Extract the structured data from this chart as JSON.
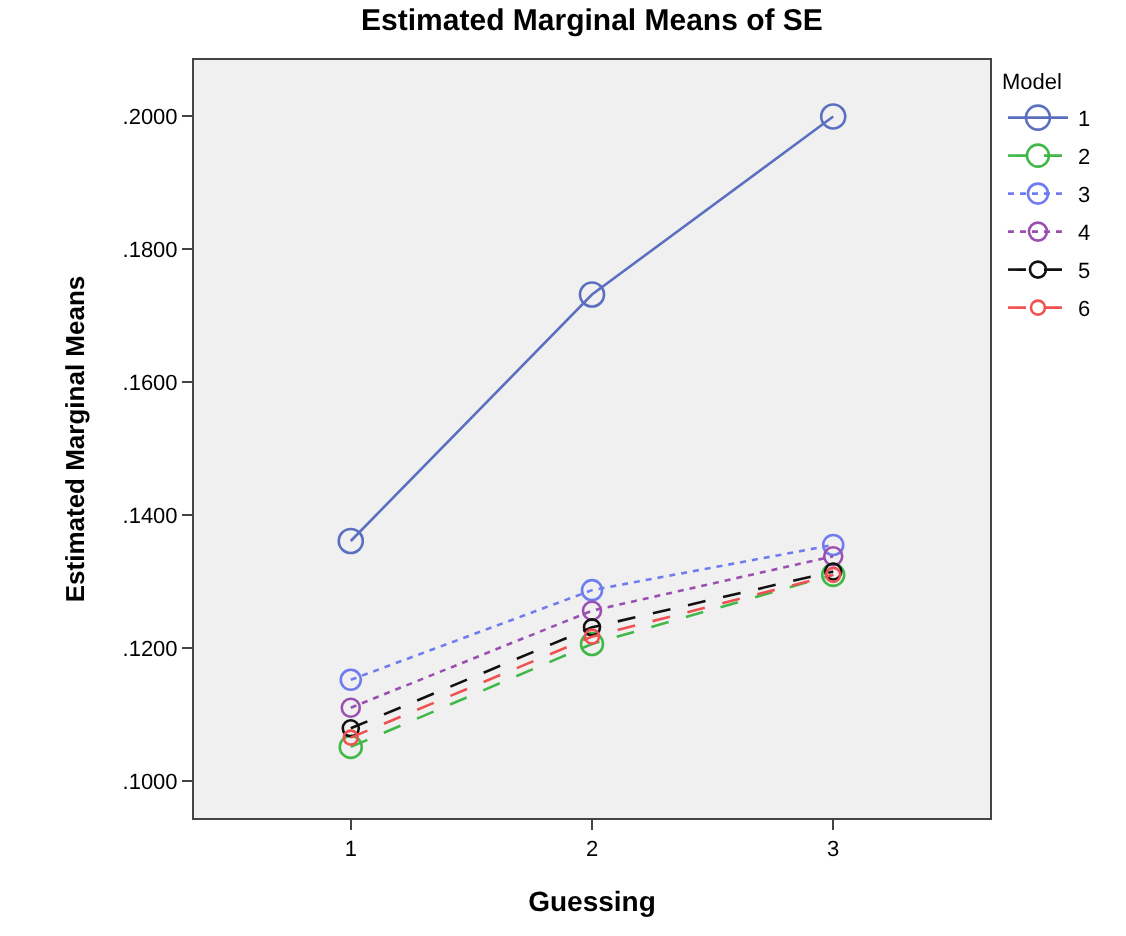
{
  "chart_data": {
    "type": "line",
    "title": "Estimated Marginal Means of SE",
    "xlabel": "Guessing",
    "ylabel": "Estimated Marginal Means",
    "legend_title": "Model",
    "categories": [
      "1",
      "2",
      "3"
    ],
    "series": [
      {
        "name": "1",
        "color": "#5a6fc0",
        "line_style": "solid",
        "values": [
          0.1361,
          0.1732,
          0.2
        ]
      },
      {
        "name": "2",
        "color": "#40b848",
        "line_style": "dashed",
        "values": [
          0.1051,
          0.1206,
          0.131
        ]
      },
      {
        "name": "3",
        "color": "#6f7cf0",
        "line_style": "dotted",
        "values": [
          0.1152,
          0.1287,
          0.1355
        ]
      },
      {
        "name": "4",
        "color": "#9a4fb0",
        "line_style": "dotted",
        "values": [
          0.111,
          0.1256,
          0.1338
        ]
      },
      {
        "name": "5",
        "color": "#101010",
        "line_style": "dashed",
        "values": [
          0.1079,
          0.1231,
          0.1315
        ]
      },
      {
        "name": "6",
        "color": "#f05050",
        "line_style": "dashed",
        "values": [
          0.1065,
          0.1217,
          0.131
        ]
      }
    ],
    "ylim": [
      0.0944,
      0.2085
    ],
    "yticks": [
      {
        "value": 0.1,
        "label": ".1000"
      },
      {
        "value": 0.12,
        "label": ".1200"
      },
      {
        "value": 0.14,
        "label": ".1400"
      },
      {
        "value": 0.16,
        "label": ".1600"
      },
      {
        "value": 0.18,
        "label": ".1800"
      },
      {
        "value": 0.2,
        "label": ".2000"
      }
    ],
    "marker": "circle",
    "grid": false,
    "legend": "right"
  }
}
